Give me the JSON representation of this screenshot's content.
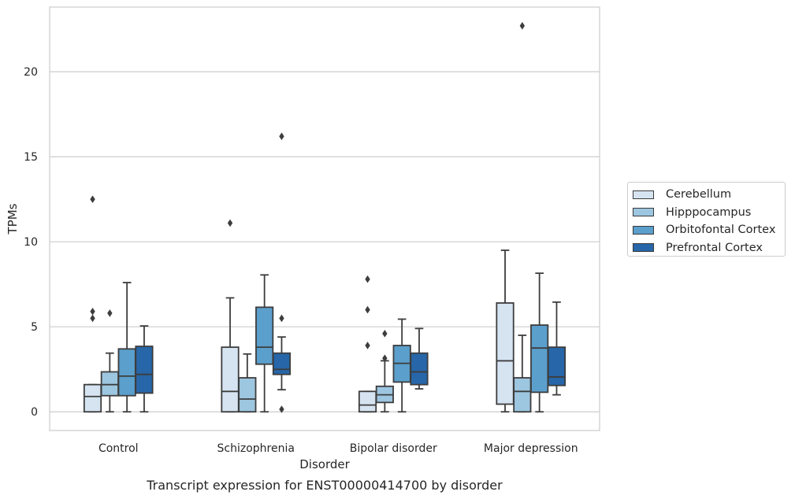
{
  "chart_data": {
    "type": "boxplot",
    "title": "",
    "caption": "Transcript expression for ENST00000414700 by disorder",
    "xlabel": "Disorder",
    "ylabel": "TPMs",
    "ylim": [
      -1.1,
      23.8
    ],
    "yticks": [
      0,
      5,
      10,
      15,
      20
    ],
    "categories": [
      "Control",
      "Schizophrenia",
      "Bipolar disorder",
      "Major depression"
    ],
    "grid": "horizontal",
    "legend_position": "right",
    "series": [
      {
        "name": "Cerebellum",
        "color": "#d6e4f2",
        "boxes": [
          {
            "whisker_low": 0,
            "q1": 0,
            "median": 0.9,
            "q3": 1.6,
            "whisker_high": 1.6,
            "outliers": [
              5.5,
              5.9,
              12.5
            ]
          },
          {
            "whisker_low": 0,
            "q1": 0,
            "median": 1.2,
            "q3": 3.8,
            "whisker_high": 6.7,
            "outliers": [
              11.1
            ]
          },
          {
            "whisker_low": 0,
            "q1": 0,
            "median": 0.4,
            "q3": 1.2,
            "whisker_high": 1.2,
            "outliers": [
              3.9,
              6.0,
              7.8
            ]
          },
          {
            "whisker_low": 0,
            "q1": 0.45,
            "median": 3.0,
            "q3": 6.4,
            "whisker_high": 9.5,
            "outliers": []
          }
        ]
      },
      {
        "name": "Hipppocampus",
        "color": "#9dc6e0",
        "boxes": [
          {
            "whisker_low": 0,
            "q1": 0.95,
            "median": 1.6,
            "q3": 2.35,
            "whisker_high": 3.45,
            "outliers": [
              5.8
            ]
          },
          {
            "whisker_low": 0,
            "q1": 0,
            "median": 0.75,
            "q3": 2.0,
            "whisker_high": 3.4,
            "outliers": []
          },
          {
            "whisker_low": 0,
            "q1": 0.55,
            "median": 1.0,
            "q3": 1.5,
            "whisker_high": 3.0,
            "outliers": [
              3.15,
              4.6
            ]
          },
          {
            "whisker_low": 0,
            "q1": 0,
            "median": 1.2,
            "q3": 2.0,
            "whisker_high": 4.5,
            "outliers": [
              22.7
            ]
          }
        ]
      },
      {
        "name": "Orbitofontal Cortex",
        "color": "#5b9fcc",
        "boxes": [
          {
            "whisker_low": 0,
            "q1": 0.95,
            "median": 2.1,
            "q3": 3.7,
            "whisker_high": 7.6,
            "outliers": []
          },
          {
            "whisker_low": 0,
            "q1": 2.8,
            "median": 3.8,
            "q3": 6.15,
            "whisker_high": 8.05,
            "outliers": []
          },
          {
            "whisker_low": 0,
            "q1": 1.75,
            "median": 2.85,
            "q3": 3.9,
            "whisker_high": 5.45,
            "outliers": []
          },
          {
            "whisker_low": 0,
            "q1": 1.15,
            "median": 3.75,
            "q3": 5.1,
            "whisker_high": 8.15,
            "outliers": []
          }
        ]
      },
      {
        "name": "Prefrontal Cortex",
        "color": "#2666a9",
        "boxes": [
          {
            "whisker_low": 0,
            "q1": 1.1,
            "median": 2.2,
            "q3": 3.85,
            "whisker_high": 5.05,
            "outliers": []
          },
          {
            "whisker_low": 1.3,
            "q1": 2.2,
            "median": 2.5,
            "q3": 3.45,
            "whisker_high": 4.4,
            "outliers": [
              0.15,
              5.5,
              16.2
            ]
          },
          {
            "whisker_low": 1.35,
            "q1": 1.6,
            "median": 2.35,
            "q3": 3.45,
            "whisker_high": 4.9,
            "outliers": []
          },
          {
            "whisker_low": 1.0,
            "q1": 1.55,
            "median": 2.05,
            "q3": 3.8,
            "whisker_high": 6.45,
            "outliers": []
          }
        ]
      }
    ]
  }
}
